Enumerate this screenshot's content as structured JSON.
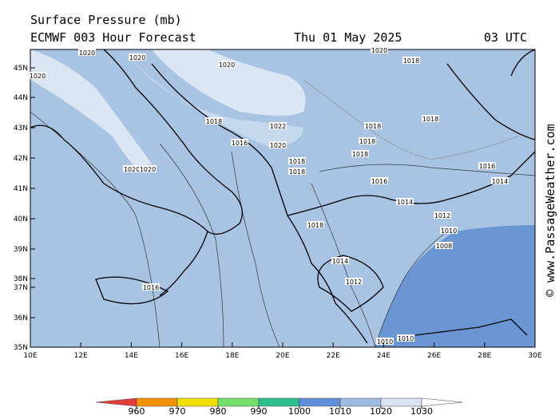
{
  "title": "Surface Pressure (mb)",
  "model": "ECMWF 003 Hour Forecast",
  "date": "Thu 01 May 2025",
  "time": "03 UTC",
  "watermark": "© www.PassageWeather.com",
  "lat_labels": [
    "35N",
    "36N",
    "37N",
    "38N",
    "39N",
    "40N",
    "41N",
    "42N",
    "43N",
    "44N",
    "45N"
  ],
  "lon_labels": [
    "10E",
    "12E",
    "14E",
    "16E",
    "18E",
    "20E",
    "22E",
    "24E",
    "26E",
    "28E",
    "30E"
  ],
  "isobar_labels": [
    1020,
    1020,
    1020,
    1020,
    1020,
    1018,
    1018,
    1022,
    1018,
    1018,
    1016,
    1020,
    1018,
    1018,
    1018,
    1018,
    1020,
    1020,
    1016,
    1014,
    1016,
    1014,
    1012,
    1018,
    1010,
    1008,
    1014,
    1012,
    1016,
    1010,
    1010
  ],
  "colorbar": {
    "ticks": [
      960,
      970,
      980,
      990,
      1000,
      1010,
      1020,
      1030
    ],
    "colors": [
      "#e33b3b",
      "#f39200",
      "#f3e000",
      "#72e06a",
      "#2fbf8d",
      "#5f8fd6",
      "#9dbae3",
      "#d8e4f4",
      "#ffffff"
    ]
  }
}
